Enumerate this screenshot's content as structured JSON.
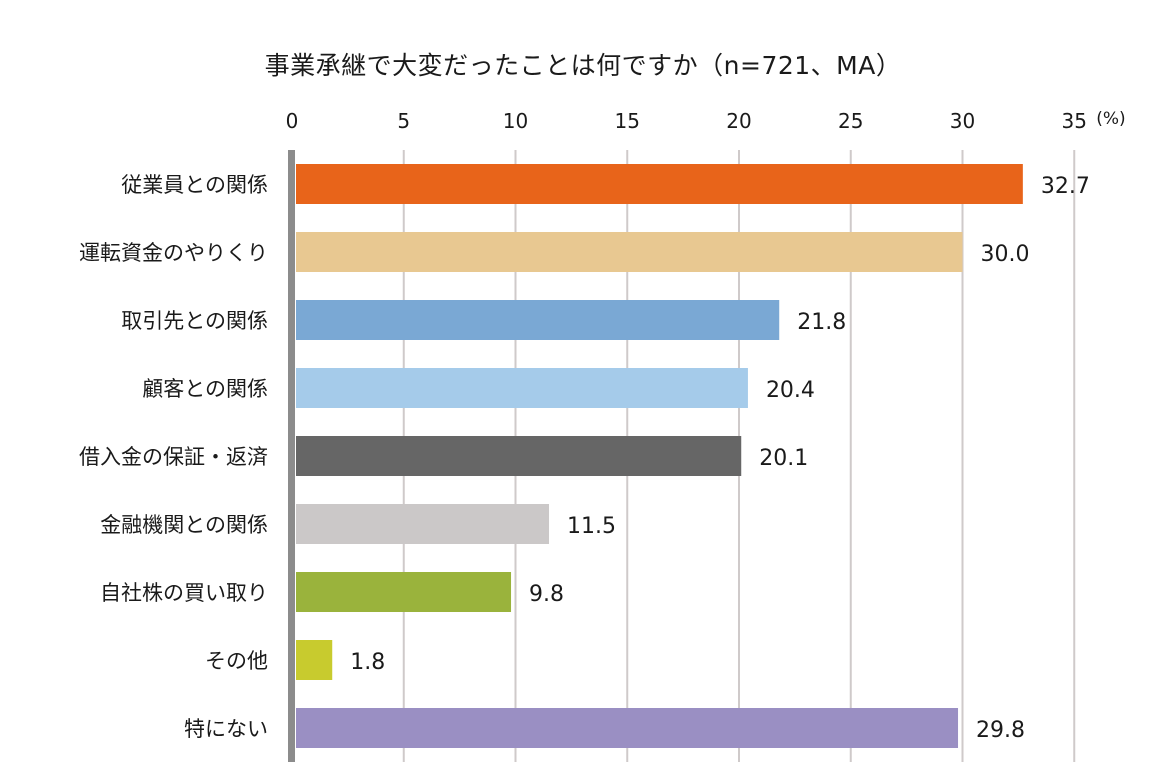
{
  "chart_data": {
    "type": "bar",
    "orientation": "horizontal",
    "title": "事業承継で大変だったことは何ですか（n=721、MA）",
    "unit": "(%)",
    "xlim": [
      0,
      35
    ],
    "ticks": [
      0,
      5,
      10,
      15,
      20,
      25,
      30,
      35
    ],
    "grid": true,
    "categories": [
      "従業員との関係",
      "運転資金のやりくり",
      "取引先との関係",
      "顧客との関係",
      "借入金の保証・返済",
      "金融機関との関係",
      "自社株の買い取り",
      "その他",
      "特にない"
    ],
    "values": [
      32.7,
      30.0,
      21.8,
      20.4,
      20.1,
      11.5,
      9.8,
      1.8,
      29.8
    ],
    "value_labels": [
      "32.7",
      "30.0",
      "21.8",
      "20.4",
      "20.1",
      "11.5",
      "9.8",
      "1.8",
      "29.8"
    ],
    "colors": [
      "#e8641a",
      "#e8c891",
      "#7aa8d4",
      "#a5cbea",
      "#666666",
      "#cbc8c8",
      "#9ab33c",
      "#c8cb2e",
      "#9a8fc3"
    ]
  }
}
